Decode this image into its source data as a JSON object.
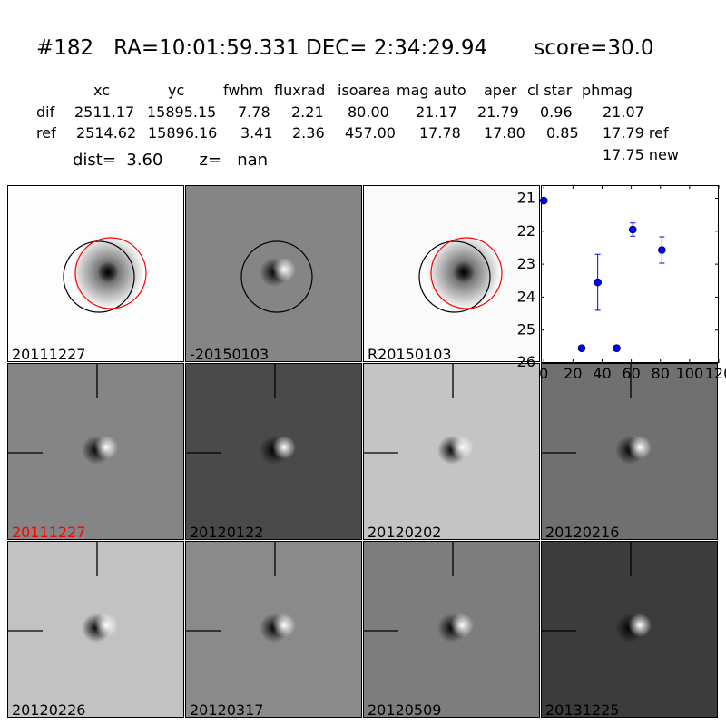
{
  "header": {
    "title": "#182   RA=10:01:59.331 DEC= 2:34:29.94       score=30.0",
    "columns": [
      "xc",
      "yc",
      "fwhm",
      "fluxrad",
      "isoarea",
      "mag auto",
      "aper",
      "cl star",
      "phmag"
    ],
    "rows": [
      {
        "label": "dif",
        "values": [
          "2511.17",
          "15895.15",
          "7.78",
          "2.21",
          "80.00",
          "21.17",
          "21.79",
          "0.96",
          "21.07"
        ]
      },
      {
        "label": "ref",
        "values": [
          "2514.62",
          "15896.16",
          "3.41",
          "2.36",
          "457.00",
          "17.78",
          "17.80",
          "0.85",
          "17.79 ref"
        ]
      }
    ],
    "new_mag": "17.75 new",
    "dist_line": "dist=  3.60       z=   nan"
  },
  "panels": [
    {
      "label": "20111227",
      "label_color": "#000000",
      "style": "ref-circles",
      "bg": "#fdfdfd"
    },
    {
      "label": "-20150103",
      "label_color": "#000000",
      "style": "dif-circle",
      "bg": "#858585"
    },
    {
      "label": "R20150103",
      "label_color": "#000000",
      "style": "ref-circles",
      "bg": "#fafafa"
    },
    {
      "label": "20111227",
      "label_color": "#ff0000",
      "style": "dipole",
      "bg": "#858585"
    },
    {
      "label": "20120122",
      "label_color": "#000000",
      "style": "dipole",
      "bg": "#4a4a4a"
    },
    {
      "label": "20120202",
      "label_color": "#000000",
      "style": "dipole",
      "bg": "#c4c4c4"
    },
    {
      "label": "20120216",
      "label_color": "#000000",
      "style": "dipole",
      "bg": "#707070"
    },
    {
      "label": "20120226",
      "label_color": "#000000",
      "style": "dipole",
      "bg": "#c2c2c2"
    },
    {
      "label": "20120317",
      "label_color": "#000000",
      "style": "dipole",
      "bg": "#8a8a8a"
    },
    {
      "label": "20120509",
      "label_color": "#000000",
      "style": "dipole",
      "bg": "#7d7d7d"
    },
    {
      "label": "20131225",
      "label_color": "#000000",
      "style": "dipole",
      "bg": "#3c3c3c"
    }
  ],
  "chart_data": {
    "type": "scatter",
    "title": "",
    "xlabel": "",
    "ylabel": "",
    "xlim": [
      -2,
      120
    ],
    "ylim": [
      26,
      20.6
    ],
    "y_inverted": true,
    "xticks": [
      "0",
      "20",
      "40",
      "60",
      "80",
      "100",
      "120"
    ],
    "yticks": [
      "21",
      "22",
      "23",
      "24",
      "25",
      "26"
    ],
    "marker_color": "#0000ff",
    "points": [
      {
        "x": 0,
        "y": 21.07,
        "yerr": 0
      },
      {
        "x": 26,
        "y": 25.55,
        "yerr": 0.05
      },
      {
        "x": 37,
        "y": 23.55,
        "yerr": 0.85
      },
      {
        "x": 50,
        "y": 25.55,
        "yerr": 0.05
      },
      {
        "x": 61,
        "y": 21.95,
        "yerr": 0.2
      },
      {
        "x": 81,
        "y": 22.57,
        "yerr": 0.4
      }
    ]
  }
}
